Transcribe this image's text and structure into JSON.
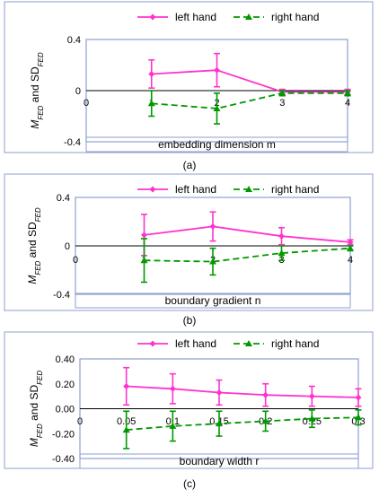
{
  "colors": {
    "left_hand": "#ff33cc",
    "right_hand": "#009900",
    "frame": "#8c9fcf",
    "axis": "#000000"
  },
  "panels": [
    {
      "caption": "(a)"
    },
    {
      "caption": "(b)"
    },
    {
      "caption": "(c)"
    }
  ],
  "chart_data": [
    {
      "type": "line",
      "x": [
        1,
        2,
        3,
        4
      ],
      "x_ticks": [
        "0",
        "1",
        "2",
        "3",
        "4"
      ],
      "x_tick_values": [
        0,
        1,
        2,
        3,
        4
      ],
      "xlim": [
        0,
        4
      ],
      "ylim": [
        -0.4,
        0.4
      ],
      "y_ticks": [
        "0.4",
        "0",
        "-0.4"
      ],
      "y_tick_values": [
        0.4,
        0,
        -0.4
      ],
      "xlabel": "embedding dimension m",
      "ylabel_main": "M",
      "ylabel_sub1": "FED",
      "ylabel_mid": " and SD",
      "ylabel_sub2": "FED",
      "legend": [
        "left hand",
        "right hand"
      ],
      "legend_position": "top",
      "series": [
        {
          "name": "left hand",
          "values": [
            0.13,
            0.16,
            -0.01,
            -0.01
          ],
          "errors": [
            0.11,
            0.13,
            0.02,
            0.02
          ]
        },
        {
          "name": "right hand",
          "values": [
            -0.1,
            -0.14,
            -0.02,
            -0.02
          ],
          "errors": [
            0.1,
            0.12,
            0.02,
            0.02
          ]
        }
      ]
    },
    {
      "type": "line",
      "x": [
        1,
        2,
        3,
        4
      ],
      "x_ticks": [
        "0",
        "1",
        "2",
        "3",
        "4"
      ],
      "x_tick_values": [
        0,
        1,
        2,
        3,
        4
      ],
      "xlim": [
        0,
        4
      ],
      "ylim": [
        -0.4,
        0.4
      ],
      "y_ticks": [
        "0.4",
        "0",
        "-0.4"
      ],
      "y_tick_values": [
        0.4,
        0,
        -0.4
      ],
      "xlabel": "boundary gradient n",
      "ylabel_main": "M",
      "ylabel_sub1": "FED",
      "ylabel_mid": " and SD",
      "ylabel_sub2": "FED",
      "legend": [
        "left hand",
        "right hand"
      ],
      "legend_position": "top",
      "series": [
        {
          "name": "left hand",
          "values": [
            0.09,
            0.16,
            0.08,
            0.03
          ],
          "errors": [
            0.17,
            0.12,
            0.07,
            0.02
          ]
        },
        {
          "name": "right hand",
          "values": [
            -0.12,
            -0.13,
            -0.06,
            -0.02
          ],
          "errors": [
            0.18,
            0.11,
            0.06,
            0.02
          ]
        }
      ]
    },
    {
      "type": "line",
      "x": [
        0.05,
        0.1,
        0.15,
        0.2,
        0.25,
        0.3
      ],
      "x_ticks": [
        "0",
        "0.05",
        "0.1",
        "0.15",
        "0.2",
        "0.25",
        "0.3"
      ],
      "x_tick_values": [
        0,
        0.05,
        0.1,
        0.15,
        0.2,
        0.25,
        0.3
      ],
      "xlim": [
        0,
        0.3
      ],
      "ylim": [
        -0.4,
        0.4
      ],
      "y_ticks": [
        "0.40",
        "0.20",
        "0.00",
        "-0.20",
        "-0.40"
      ],
      "y_tick_values": [
        0.4,
        0.2,
        0,
        -0.2,
        -0.4
      ],
      "xlabel": "boundary width r",
      "ylabel_main": "M",
      "ylabel_sub1": "FED",
      "ylabel_mid": " and SD",
      "ylabel_sub2": "FED",
      "legend": [
        "left hand",
        "right hand"
      ],
      "legend_position": "top",
      "series": [
        {
          "name": "left hand",
          "values": [
            0.18,
            0.16,
            0.13,
            0.11,
            0.1,
            0.09
          ],
          "errors": [
            0.15,
            0.12,
            0.1,
            0.09,
            0.08,
            0.07
          ]
        },
        {
          "name": "right hand",
          "values": [
            -0.17,
            -0.14,
            -0.12,
            -0.1,
            -0.08,
            -0.07
          ],
          "errors": [
            0.15,
            0.12,
            0.1,
            0.08,
            0.07,
            0.06
          ]
        }
      ]
    }
  ]
}
